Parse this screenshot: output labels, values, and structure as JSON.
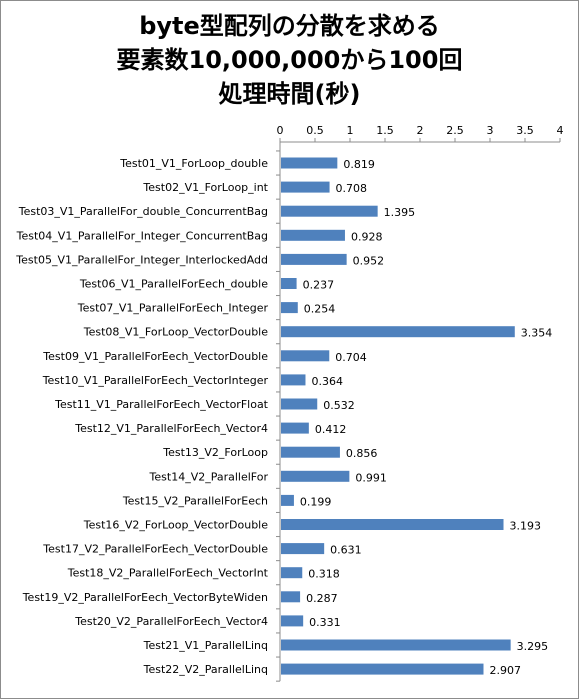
{
  "chart_data": {
    "type": "bar",
    "orientation": "horizontal",
    "title_lines": [
      "byte型配列の分散を求める",
      "要素数10,000,000から100回",
      "処理時間(秒)"
    ],
    "xlabel": "",
    "ylabel": "",
    "xlim": [
      0,
      4
    ],
    "x_ticks": [
      "0",
      "0.5",
      "1",
      "1.5",
      "2",
      "2.5",
      "3",
      "3.5",
      "4"
    ],
    "x_tick_values": [
      0,
      0.5,
      1,
      1.5,
      2,
      2.5,
      3,
      3.5,
      4
    ],
    "x_axis_position": "top",
    "grid": false,
    "legend": "none",
    "bar_color": "#4f81bd",
    "categories": [
      "Test01_V1_ForLoop_double",
      "Test02_V1_ForLoop_int",
      "Test03_V1_ParallelFor_double_ConcurrentBag",
      "Test04_V1_ParallelFor_Integer_ConcurrentBag",
      "Test05_V1_ParallelFor_Integer_InterlockedAdd",
      "Test06_V1_ParallelForEech_double",
      "Test07_V1_ParallelForEech_Integer",
      "Test08_V1_ForLoop_VectorDouble",
      "Test09_V1_ParallelForEech_VectorDouble",
      "Test10_V1_ParallelForEech_VectorInteger",
      "Test11_V1_ParallelForEech_VectorFloat",
      "Test12_V1_ParallelForEech_Vector4",
      "Test13_V2_ForLoop",
      "Test14_V2_ParallelFor",
      "Test15_V2_ParallelForEech",
      "Test16_V2_ForLoop_VectorDouble",
      "Test17_V2_ParallelForEech_VectorDouble",
      "Test18_V2_ParallelForEech_VectorInt",
      "Test19_V2_ParallelForEech_VectorByteWiden",
      "Test20_V2_ParallelForEech_Vector4",
      "Test21_V1_ParallelLinq",
      "Test22_V2_ParallelLinq"
    ],
    "values": [
      0.819,
      0.708,
      1.395,
      0.928,
      0.952,
      0.237,
      0.254,
      3.354,
      0.704,
      0.364,
      0.532,
      0.412,
      0.856,
      0.991,
      0.199,
      3.193,
      0.631,
      0.318,
      0.287,
      0.331,
      3.295,
      2.907
    ],
    "value_labels": [
      "0.819",
      "0.708",
      "1.395",
      "0.928",
      "0.952",
      "0.237",
      "0.254",
      "3.354",
      "0.704",
      "0.364",
      "0.532",
      "0.412",
      "0.856",
      "0.991",
      "0.199",
      "3.193",
      "0.631",
      "0.318",
      "0.287",
      "0.331",
      "3.295",
      "2.907"
    ]
  }
}
